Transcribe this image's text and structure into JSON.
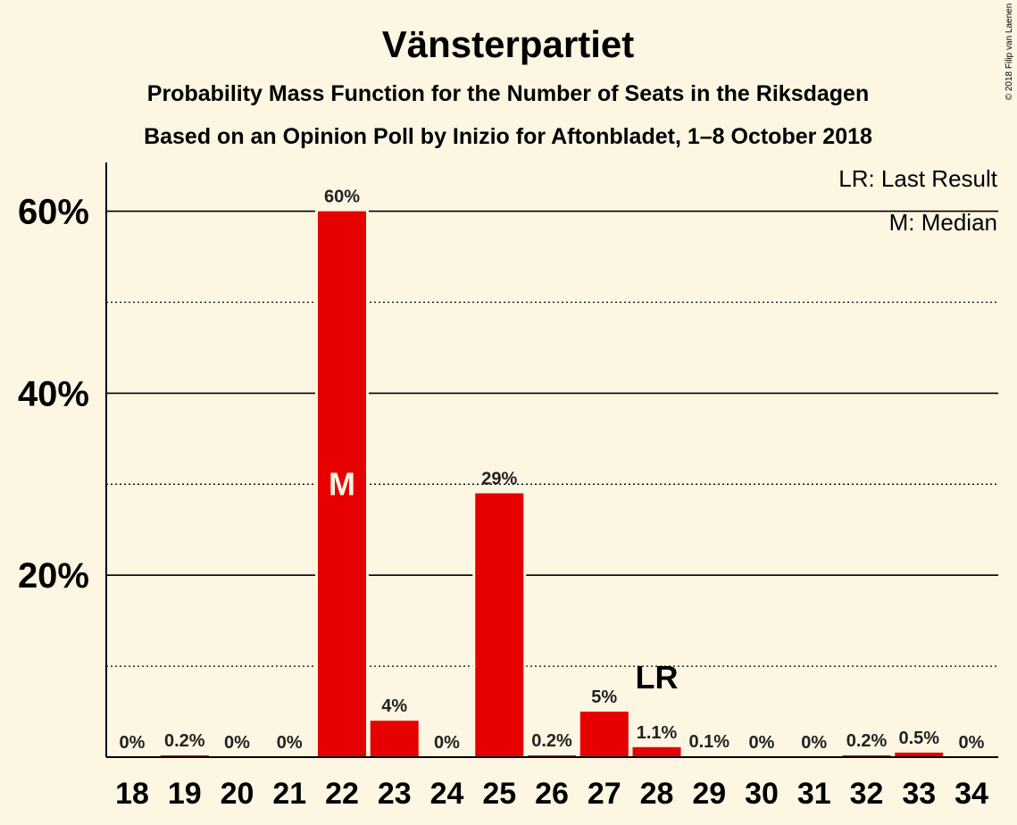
{
  "chart_data": {
    "type": "bar",
    "title": "Vänsterpartiet",
    "subtitle1": "Probability Mass Function for the Number of Seats in the Riksdagen",
    "subtitle2": "Based on an Opinion Poll by Inizio for Aftonbladet, 1–8 October 2018",
    "copyright": "© 2018 Filip van Laenen",
    "legend": [
      "LR: Last Result",
      "M: Median"
    ],
    "categories": [
      "18",
      "19",
      "20",
      "21",
      "22",
      "23",
      "24",
      "25",
      "26",
      "27",
      "28",
      "29",
      "30",
      "31",
      "32",
      "33",
      "34"
    ],
    "values": [
      0,
      0.2,
      0,
      0,
      60,
      4,
      0,
      29,
      0.2,
      5,
      1.1,
      0.1,
      0,
      0,
      0.2,
      0.5,
      0
    ],
    "value_labels": [
      "0%",
      "0.2%",
      "0%",
      "0%",
      "60%",
      "4%",
      "0%",
      "29%",
      "0.2%",
      "5%",
      "1.1%",
      "0.1%",
      "0%",
      "0%",
      "0.2%",
      "0.5%",
      "0%"
    ],
    "ylim": [
      0,
      65
    ],
    "yticks": [
      20,
      40,
      60
    ],
    "ytick_labels": [
      "20%",
      "40%",
      "60%"
    ],
    "minor_gridlines": [
      10,
      30,
      50
    ],
    "median_category": "22",
    "median_label": "M",
    "last_result_category": "28",
    "last_result_label": "LR",
    "bar_color": "#e60000"
  }
}
